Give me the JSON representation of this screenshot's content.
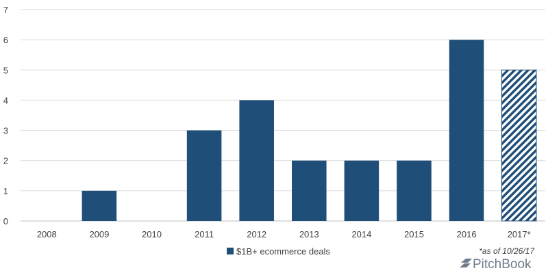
{
  "chart_data": {
    "type": "bar",
    "categories": [
      "2008",
      "2009",
      "2010",
      "2011",
      "2012",
      "2013",
      "2014",
      "2015",
      "2016",
      "2017*"
    ],
    "series": [
      {
        "name": "$1B+ ecommerce deals",
        "values": [
          0,
          1,
          0,
          3,
          4,
          2,
          2,
          2,
          6,
          5
        ],
        "color": "#1f4e79"
      }
    ],
    "hatched_categories": [
      "2017*"
    ],
    "ylim": [
      0,
      7
    ],
    "yticks": [
      0,
      1,
      2,
      3,
      4,
      5,
      6,
      7
    ],
    "grid": true,
    "legend_position": "bottom-center",
    "title": "",
    "xlabel": "",
    "ylabel": ""
  },
  "footnote": "*as of 10/26/17",
  "brand": {
    "name": "PitchBook",
    "icon": "pitchbook-logo-icon",
    "color": "#6f7c8c"
  }
}
